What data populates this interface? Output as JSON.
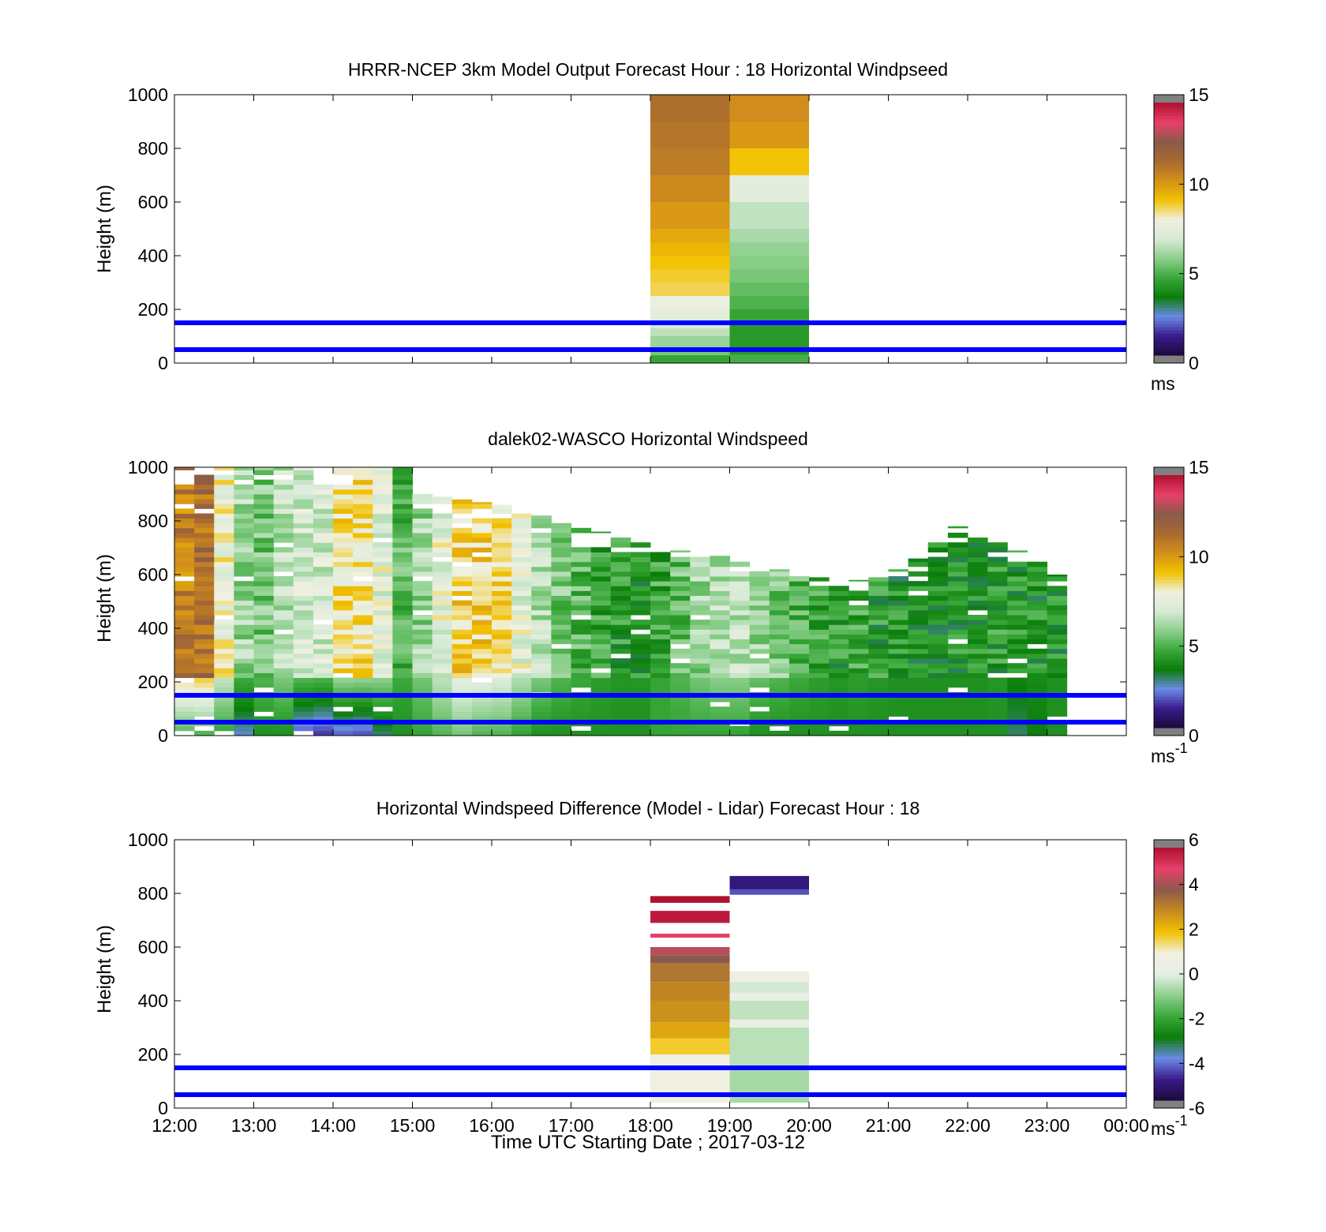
{
  "colors": {
    "wind_scale": [
      "#1a0a3a",
      "#3a1a8a",
      "#6a8ae6",
      "#0a7d0a",
      "#3aa83a",
      "#8ccf8c",
      "#d6ead6",
      "#f0f0e0",
      "#f2c200",
      "#d4901a",
      "#a86a30",
      "#8a5a4a",
      "#e8406a",
      "#b01030"
    ],
    "diff_scale": [
      "#1a0a3a",
      "#3a1a8a",
      "#6a8ae6",
      "#0a7d0a",
      "#3aa83a",
      "#8ccf8c",
      "#e6f0e6",
      "#f0f0e0",
      "#f2c200",
      "#c88a20",
      "#8a5a4a",
      "#e8406a",
      "#b01030"
    ],
    "colorbar_end": "#808080",
    "lines": "#0000ff"
  },
  "figure": {
    "xlabel": "Time UTC  Starting Date ; 2017-03-12",
    "x_ticks": [
      "12:00",
      "13:00",
      "14:00",
      "15:00",
      "16:00",
      "17:00",
      "18:00",
      "19:00",
      "20:00",
      "21:00",
      "22:00",
      "23:00",
      "00:00"
    ]
  },
  "chart_data": [
    {
      "type": "heatmap",
      "title": "HRRR-NCEP 3km Model Output   Forecast Hour : 18 Horizontal Windpseed",
      "ylabel": "Height (m)",
      "ylim": [
        0,
        1000
      ],
      "y_ticks": [
        "0",
        "200",
        "400",
        "600",
        "800",
        "1000"
      ],
      "colorbar": {
        "range": [
          0,
          15
        ],
        "ticks": [
          "0",
          "5",
          "10",
          "15"
        ],
        "unit": "ms"
      },
      "reference_lines_m": [
        50,
        150
      ],
      "columns": [
        {
          "time_start": "18:00",
          "time_end": "19:00",
          "cells": [
            [
              0,
              30,
              4.5
            ],
            [
              30,
              60,
              5.5
            ],
            [
              60,
              100,
              6.0
            ],
            [
              100,
              130,
              6.5
            ],
            [
              130,
              160,
              7.0
            ],
            [
              160,
              200,
              7.5
            ],
            [
              200,
              250,
              7.8
            ],
            [
              250,
              300,
              8.8
            ],
            [
              300,
              350,
              9.0
            ],
            [
              350,
              400,
              9.2
            ],
            [
              400,
              450,
              9.5
            ],
            [
              450,
              500,
              9.8
            ],
            [
              500,
              600,
              10.2
            ],
            [
              600,
              700,
              10.6
            ],
            [
              700,
              800,
              11.0
            ],
            [
              800,
              900,
              11.2
            ],
            [
              900,
              1000,
              11.4
            ]
          ]
        },
        {
          "time_start": "19:00",
          "time_end": "20:00",
          "cells": [
            [
              0,
              30,
              4.8
            ],
            [
              30,
              150,
              4.2
            ],
            [
              150,
              200,
              4.5
            ],
            [
              200,
              250,
              4.9
            ],
            [
              250,
              300,
              5.2
            ],
            [
              300,
              350,
              5.5
            ],
            [
              350,
              400,
              5.7
            ],
            [
              400,
              450,
              5.9
            ],
            [
              450,
              500,
              6.2
            ],
            [
              500,
              600,
              6.6
            ],
            [
              600,
              700,
              7.5
            ],
            [
              700,
              800,
              9.2
            ],
            [
              800,
              900,
              10.2
            ],
            [
              900,
              1000,
              10.5
            ]
          ]
        }
      ]
    },
    {
      "type": "heatmap",
      "title": "dalek02-WASCO  Horizontal Windspeed",
      "ylabel": "Height (m)",
      "ylim": [
        0,
        1000
      ],
      "y_ticks": [
        "0",
        "200",
        "400",
        "600",
        "800",
        "1000"
      ],
      "colorbar": {
        "range": [
          0,
          15
        ],
        "ticks": [
          "0",
          "5",
          "10",
          "15"
        ],
        "unit": "ms",
        "unit_exponent": "-1"
      },
      "reference_lines_m": [
        50,
        150
      ],
      "time_step_min": 15,
      "columns_top_m": [
        1000,
        1000,
        1000,
        1000,
        1000,
        1000,
        1000,
        1000,
        1000,
        1000,
        1000,
        1000,
        900,
        890,
        880,
        870,
        860,
        850,
        820,
        800,
        780,
        760,
        740,
        720,
        700,
        690,
        680,
        670,
        650,
        630,
        620,
        600,
        590,
        580,
        580,
        590,
        620,
        660,
        720,
        780,
        760,
        720,
        690,
        660,
        600
      ],
      "columns_mean_ms": [
        11.0,
        11.5,
        8.0,
        6.0,
        5.5,
        6.5,
        7.0,
        7.0,
        8.5,
        8.5,
        7.5,
        5.0,
        6.0,
        7.5,
        8.8,
        9.0,
        8.5,
        7.5,
        6.5,
        5.5,
        5.0,
        4.5,
        4.2,
        4.2,
        4.5,
        5.2,
        6.0,
        6.5,
        6.5,
        6.0,
        5.5,
        5.0,
        4.5,
        4.2,
        4.5,
        4.2,
        4.0,
        4.0,
        4.0,
        4.0,
        4.0,
        4.2,
        4.0,
        4.0,
        4.0
      ],
      "columns_low_ms": [
        5.0,
        5.0,
        4.5,
        2.5,
        4.0,
        4.0,
        1.8,
        1.5,
        2.0,
        1.8,
        3.0,
        4.0,
        4.5,
        5.0,
        5.5,
        5.0,
        5.0,
        4.5,
        4.0,
        4.0,
        4.0,
        4.0,
        4.0,
        4.0,
        4.5,
        4.5,
        4.5,
        4.5,
        4.5,
        4.0,
        4.0,
        4.0,
        4.0,
        4.0,
        4.0,
        4.0,
        4.0,
        4.0,
        4.0,
        4.0,
        4.0,
        4.0,
        3.0,
        3.5,
        4.0
      ]
    },
    {
      "type": "heatmap",
      "title": "Horizontal Windspeed Difference (Model - Lidar) Forecast Hour : 18",
      "ylabel": "Height (m)",
      "ylim": [
        0,
        1000
      ],
      "y_ticks": [
        "0",
        "200",
        "400",
        "600",
        "800",
        "1000"
      ],
      "colorbar": {
        "range": [
          -6,
          6
        ],
        "ticks": [
          "-6",
          "-4",
          "-2",
          "0",
          "2",
          "4",
          "6"
        ],
        "unit": "ms",
        "unit_exponent": "-1"
      },
      "reference_lines_m": [
        50,
        150
      ],
      "columns": [
        {
          "time_start": "18:00",
          "time_end": "19:00",
          "cells": [
            [
              20,
              200,
              1.0
            ],
            [
              200,
              260,
              1.8
            ],
            [
              260,
              320,
              2.5
            ],
            [
              320,
              400,
              2.9
            ],
            [
              400,
              470,
              3.1
            ],
            [
              470,
              540,
              3.4
            ],
            [
              540,
              570,
              4.0
            ],
            [
              570,
              600,
              4.5
            ],
            [
              635,
              650,
              5.0
            ],
            [
              690,
              735,
              5.8
            ],
            [
              765,
              790,
              6.2
            ]
          ]
        },
        {
          "time_start": "19:00",
          "time_end": "20:00",
          "cells": [
            [
              20,
              140,
              -0.7
            ],
            [
              140,
              300,
              -0.5
            ],
            [
              300,
              330,
              0.2
            ],
            [
              330,
              400,
              -0.4
            ],
            [
              400,
              430,
              0.2
            ],
            [
              430,
              470,
              -0.2
            ],
            [
              470,
              510,
              0.9
            ],
            [
              795,
              815,
              -4.5
            ],
            [
              815,
              865,
              -5.2
            ]
          ]
        }
      ]
    }
  ]
}
